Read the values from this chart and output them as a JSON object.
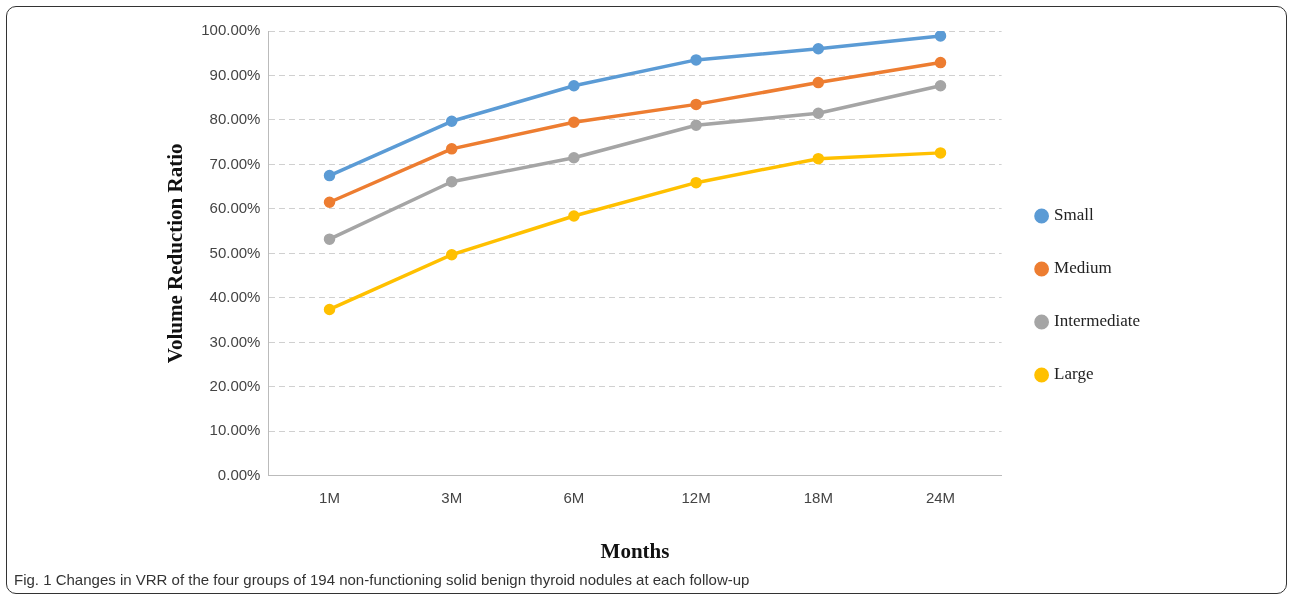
{
  "chart_data": {
    "type": "line",
    "xlabel": "Months",
    "ylabel": "Volume Reduction Ratio",
    "categories": [
      "1M",
      "3M",
      "6M",
      "12M",
      "18M",
      "24M"
    ],
    "series": [
      {
        "name": "Small",
        "color": "#5b9bd5",
        "values": [
          67.5,
          79.7,
          87.7,
          93.5,
          96.0,
          98.9
        ]
      },
      {
        "name": "Medium",
        "color": "#ed7d31",
        "values": [
          61.5,
          73.5,
          79.5,
          83.5,
          88.4,
          92.9
        ]
      },
      {
        "name": "Intermediate",
        "color": "#a5a5a5",
        "values": [
          53.2,
          66.1,
          71.5,
          78.8,
          81.5,
          87.7
        ]
      },
      {
        "name": "Large",
        "color": "#ffc000",
        "values": [
          37.4,
          49.7,
          58.4,
          65.9,
          71.3,
          72.6
        ]
      }
    ],
    "ylim": [
      0,
      100
    ],
    "yticks": [
      {
        "value": 0,
        "label": "0.00%"
      },
      {
        "value": 10,
        "label": "10.00%"
      },
      {
        "value": 20,
        "label": "20.00%"
      },
      {
        "value": 30,
        "label": "30.00%"
      },
      {
        "value": 40,
        "label": "40.00%"
      },
      {
        "value": 50,
        "label": "50.00%"
      },
      {
        "value": 60,
        "label": "60.00%"
      },
      {
        "value": 70,
        "label": "70.00%"
      },
      {
        "value": 80,
        "label": "80.00%"
      },
      {
        "value": 90,
        "label": "90.00%"
      },
      {
        "value": 100,
        "label": "100.00%"
      }
    ],
    "grid": "y",
    "legend": "right",
    "marker": "circle",
    "line_style": "solid",
    "annotations": [
      "Fig. 1 Changes in VRR of the four groups of 194 non-functioning solid benign thyroid nodules at each follow-up"
    ]
  }
}
